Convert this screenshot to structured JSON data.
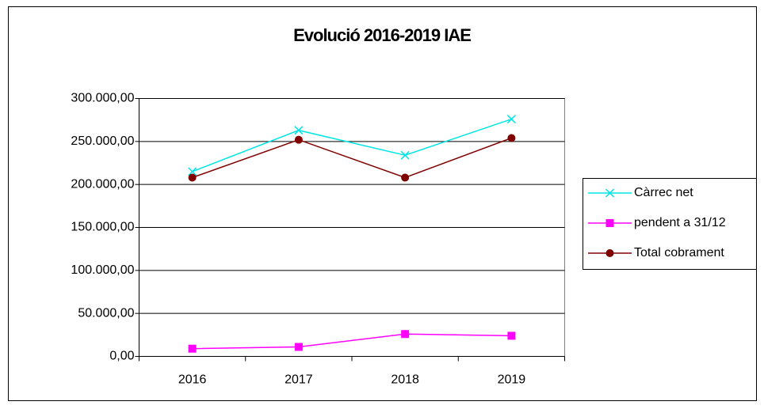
{
  "chart_data": {
    "type": "line",
    "title": "Evolució 2016-2019 IAE",
    "categories": [
      "2016",
      "2017",
      "2018",
      "2019"
    ],
    "series": [
      {
        "name": "Càrrec net",
        "color": "#00e5e5",
        "marker": "x",
        "values": [
          215000,
          263000,
          234000,
          276000
        ]
      },
      {
        "name": "pendent a 31/12",
        "color": "#ff00ff",
        "marker": "square",
        "values": [
          9000,
          11000,
          26000,
          24000
        ]
      },
      {
        "name": "Total cobrament",
        "color": "#800000",
        "marker": "circle",
        "values": [
          208000,
          252000,
          208000,
          254000
        ]
      }
    ],
    "ylim": [
      0,
      300000
    ],
    "yticks": [
      {
        "value": 0,
        "label": "0,00"
      },
      {
        "value": 50000,
        "label": "50.000,00"
      },
      {
        "value": 100000,
        "label": "100.000,00"
      },
      {
        "value": 150000,
        "label": "150.000,00"
      },
      {
        "value": 200000,
        "label": "200.000,00"
      },
      {
        "value": 250000,
        "label": "250.000,00"
      },
      {
        "value": 300000,
        "label": "300.000,00"
      }
    ],
    "grid": true,
    "legend": "right"
  }
}
